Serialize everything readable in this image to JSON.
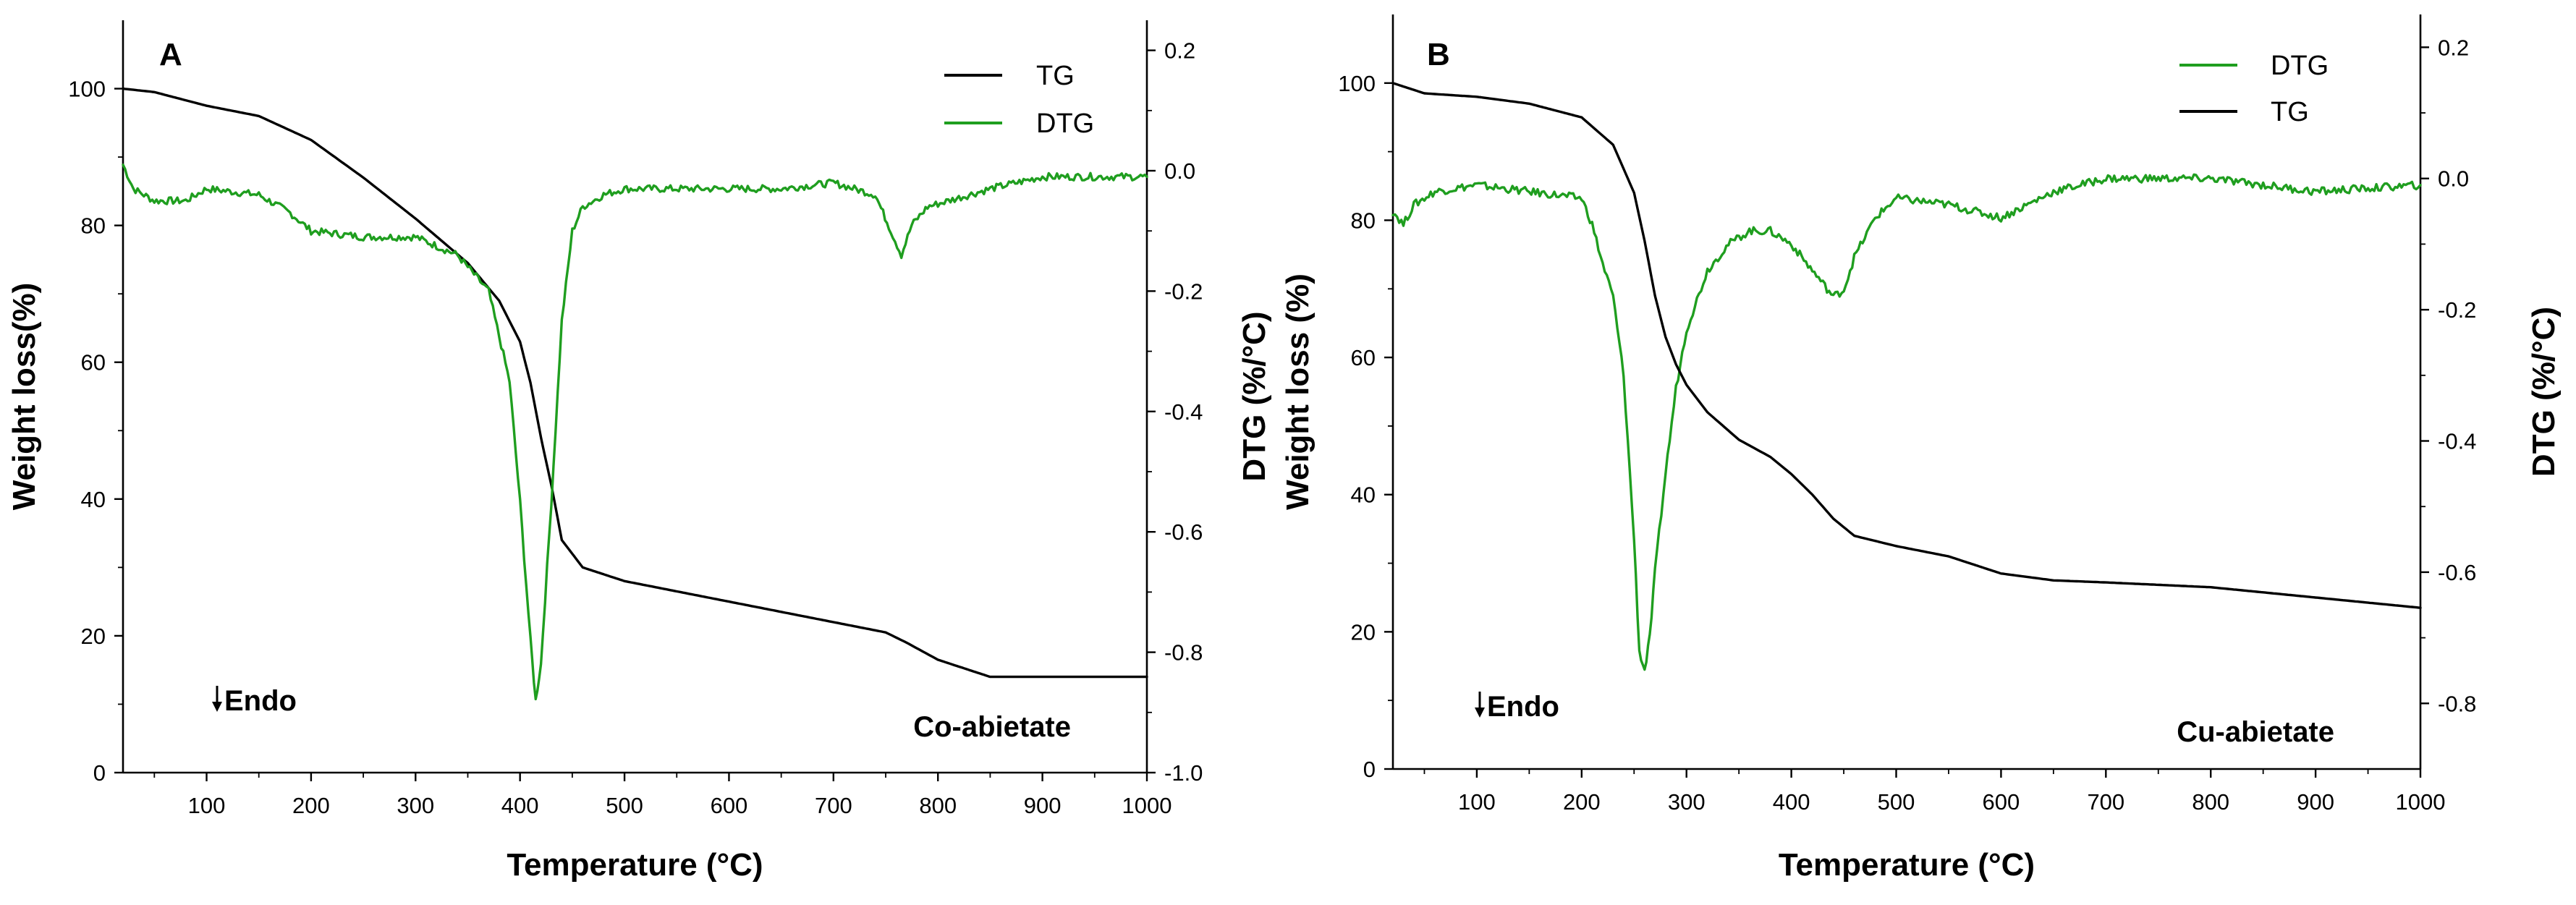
{
  "chart_data": [
    {
      "type": "line",
      "panel_label": "A",
      "annotation": "Co-abietate",
      "endo_label": "Endo",
      "xlabel": "Temperature (°C)",
      "ylabel": "Weight loss(%)",
      "y2label": "DTG (%/°C)",
      "xlim": [
        20,
        1000
      ],
      "ylim": [
        0,
        110
      ],
      "y2lim": [
        -1.0,
        0.25
      ],
      "xticks": [
        100,
        200,
        300,
        400,
        500,
        600,
        700,
        800,
        900,
        1000
      ],
      "yticks": [
        0,
        20,
        40,
        60,
        80,
        100
      ],
      "y2ticks": [
        -1.0,
        -0.8,
        -0.6,
        -0.4,
        -0.2,
        0.0,
        0.2
      ],
      "xtick_labels": [
        "100",
        "200",
        "300",
        "400",
        "500",
        "600",
        "700",
        "800",
        "900",
        "1000"
      ],
      "ytick_labels": [
        "0",
        "20",
        "40",
        "60",
        "80",
        "100"
      ],
      "y2tick_labels": [
        "-1.0",
        "-0.8",
        "-0.6",
        "-0.4",
        "-0.2",
        "0.0",
        "0.2"
      ],
      "legend": {
        "position": "top-right",
        "entries": [
          {
            "name": "TG",
            "color": "#000000"
          },
          {
            "name": "DTG",
            "color": "#1f9e1f"
          }
        ]
      },
      "series": [
        {
          "name": "TG",
          "axis": "left",
          "color": "#000000",
          "x": [
            20,
            50,
            100,
            150,
            200,
            250,
            300,
            350,
            380,
            400,
            410,
            420,
            430,
            440,
            460,
            500,
            600,
            700,
            750,
            770,
            800,
            850,
            1000
          ],
          "y": [
            100,
            99.5,
            97.5,
            96,
            92.5,
            87,
            81,
            74.5,
            69,
            63,
            57,
            49,
            42,
            34,
            30,
            28,
            25,
            22,
            20.5,
            19,
            16.5,
            14,
            14
          ]
        },
        {
          "name": "DTG",
          "axis": "right",
          "color": "#1f9e1f",
          "x": [
            20,
            30,
            50,
            80,
            100,
            150,
            180,
            200,
            250,
            300,
            340,
            370,
            390,
            400,
            410,
            415,
            420,
            430,
            440,
            450,
            460,
            470,
            480,
            500,
            550,
            600,
            650,
            700,
            740,
            755,
            765,
            775,
            790,
            850,
            900,
            950,
            1000
          ],
          "y": [
            0.01,
            -0.03,
            -0.05,
            -0.05,
            -0.03,
            -0.04,
            -0.07,
            -0.1,
            -0.11,
            -0.11,
            -0.14,
            -0.2,
            -0.35,
            -0.55,
            -0.78,
            -0.88,
            -0.82,
            -0.55,
            -0.25,
            -0.1,
            -0.06,
            -0.05,
            -0.04,
            -0.03,
            -0.03,
            -0.03,
            -0.03,
            -0.02,
            -0.04,
            -0.1,
            -0.14,
            -0.09,
            -0.06,
            -0.03,
            -0.01,
            -0.01,
            -0.01
          ]
        }
      ]
    },
    {
      "type": "line",
      "panel_label": "B",
      "annotation": "Cu-abietate",
      "endo_label": "Endo",
      "xlabel": "Temperature (°C)",
      "ylabel": "Weight loss (%)",
      "y2label": "DTG (%/°C)",
      "xlim": [
        20,
        1000
      ],
      "ylim": [
        0,
        110
      ],
      "y2lim": [
        -0.9,
        0.25
      ],
      "xticks": [
        100,
        200,
        300,
        400,
        500,
        600,
        700,
        800,
        900,
        1000
      ],
      "yticks": [
        0,
        20,
        40,
        60,
        80,
        100
      ],
      "y2ticks": [
        -0.8,
        -0.6,
        -0.4,
        -0.2,
        0.0,
        0.2
      ],
      "xtick_labels": [
        "100",
        "200",
        "300",
        "400",
        "500",
        "600",
        "700",
        "800",
        "900",
        "1000"
      ],
      "ytick_labels": [
        "0",
        "20",
        "40",
        "60",
        "80",
        "100"
      ],
      "y2tick_labels": [
        "-0.8",
        "-0.6",
        "-0.4",
        "-0.2",
        "0.0",
        "0.2"
      ],
      "legend": {
        "position": "top-right",
        "entries": [
          {
            "name": "DTG",
            "color": "#1f9e1f"
          },
          {
            "name": "TG",
            "color": "#000000"
          }
        ]
      },
      "series": [
        {
          "name": "DTG",
          "axis": "right",
          "color": "#1f9e1f",
          "x": [
            20,
            30,
            40,
            60,
            100,
            150,
            200,
            210,
            220,
            230,
            240,
            250,
            255,
            260,
            265,
            270,
            280,
            290,
            300,
            320,
            340,
            360,
            380,
            400,
            420,
            440,
            450,
            460,
            480,
            500,
            550,
            600,
            650,
            700,
            800,
            900,
            1000
          ],
          "y": [
            -0.05,
            -0.07,
            -0.04,
            -0.02,
            -0.01,
            -0.02,
            -0.03,
            -0.07,
            -0.13,
            -0.18,
            -0.3,
            -0.55,
            -0.72,
            -0.75,
            -0.7,
            -0.6,
            -0.45,
            -0.32,
            -0.23,
            -0.14,
            -0.1,
            -0.08,
            -0.08,
            -0.1,
            -0.14,
            -0.18,
            -0.17,
            -0.12,
            -0.06,
            -0.03,
            -0.04,
            -0.06,
            -0.02,
            0.0,
            0.0,
            -0.02,
            -0.01
          ]
        },
        {
          "name": "TG",
          "axis": "left",
          "color": "#000000",
          "x": [
            20,
            50,
            100,
            150,
            200,
            230,
            250,
            260,
            270,
            280,
            290,
            300,
            320,
            350,
            380,
            400,
            420,
            440,
            460,
            500,
            550,
            600,
            650,
            700,
            800,
            900,
            1000
          ],
          "y": [
            100,
            98.5,
            98,
            97,
            95,
            91,
            84,
            77,
            69,
            63,
            59,
            56,
            52,
            48,
            45.5,
            43,
            40,
            36.5,
            34,
            32.5,
            31,
            28.5,
            27.5,
            27.2,
            26.5,
            25,
            23.5
          ]
        }
      ]
    }
  ]
}
